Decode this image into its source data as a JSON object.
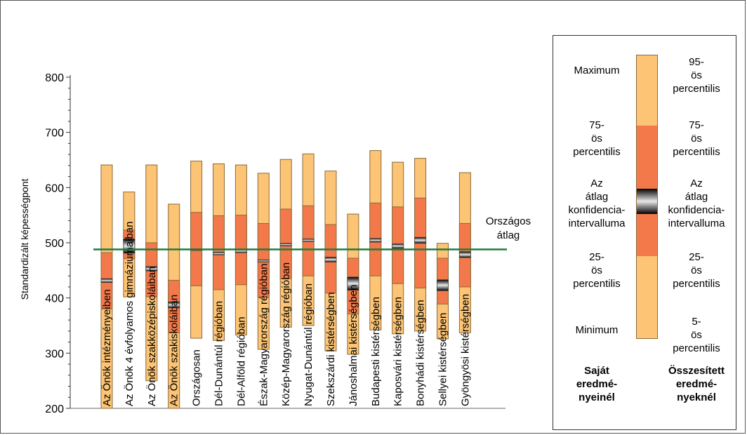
{
  "chart_data": {
    "type": "bar",
    "ylabel": "Standardizált képességpont",
    "ylim": [
      200,
      800
    ],
    "yticks": [
      200,
      300,
      400,
      500,
      600,
      700,
      800
    ],
    "categories": [
      "Az Önök intézményeiben",
      "Az Önök 4 évfolyamos gimnáziumaiban",
      "Az Önök szakközépiskoláiban",
      "Az Önök szakiskoláiban",
      "Országosan",
      "Dél-Dunántúl régióban",
      "Dél-Alföld régióban",
      "Észak-Magyarország régióban",
      "Közép-Magyarország régióban",
      "Nyugat-Dunántúl régióban",
      "Szekszárdi kistérségben",
      "Jánoshalmai kistérségben",
      "Budapesti kistérségben",
      "Kaposvári kistérségben",
      "Bonyhádi kistérségben",
      "Sellyei kistérségben",
      "Gyöngyösi kistérségben"
    ],
    "series": [
      {
        "name": "Minimum",
        "values": [
          200,
          402,
          250,
          200,
          327,
          323,
          333,
          307,
          347,
          350,
          304,
          298,
          342,
          335,
          340,
          326,
          337
        ]
      },
      {
        "name": "25-ös percentilis",
        "values": [
          380,
          471,
          402,
          337,
          422,
          415,
          424,
          401,
          435,
          440,
          409,
          371,
          440,
          426,
          418,
          389,
          420
        ]
      },
      {
        "name": "Az átlag konfidencia-intervalluma (alsó)",
        "values": [
          428,
          481,
          449,
          382,
          486,
          478,
          482,
          465,
          494,
          502,
          465,
          414,
          501,
          490,
          499,
          413,
          473
        ]
      },
      {
        "name": "Az átlag konfidencia-intervalluma (felső)",
        "values": [
          435,
          507,
          457,
          393,
          489,
          483,
          488,
          469,
          499,
          507,
          474,
          438,
          508,
          498,
          510,
          433,
          484
        ]
      },
      {
        "name": "75-ös percentilis",
        "values": [
          482,
          523,
          500,
          432,
          555,
          549,
          550,
          535,
          561,
          567,
          533,
          472,
          572,
          565,
          581,
          472,
          535
        ]
      },
      {
        "name": "Maximum",
        "values": [
          641,
          592,
          641,
          570,
          648,
          643,
          641,
          626,
          651,
          661,
          630,
          552,
          667,
          646,
          653,
          499,
          627
        ]
      }
    ],
    "reference_line": {
      "label": "Országos átlag",
      "value": 488,
      "color": "#1e7b3c"
    },
    "colors": {
      "outer": "#fcc474",
      "inner": "#f4794a",
      "outline": "#8a6a3a",
      "ci": "#222222"
    },
    "grid": false
  },
  "legend": {
    "left": [
      "Maximum",
      "75-ös percentilis",
      "Az átlag konfidencia-intervalluma",
      "25-ös percentilis",
      "Minimum"
    ],
    "right": [
      "95-ös percentilis",
      "75-ös percentilis",
      "Az átlag konfidencia-intervalluma",
      "25-ös percentilis",
      "5-ös percentilis"
    ],
    "footer_left": "Saját eredmé-nyeinél",
    "footer_right": "Összesített eredmé-nyeknél"
  }
}
